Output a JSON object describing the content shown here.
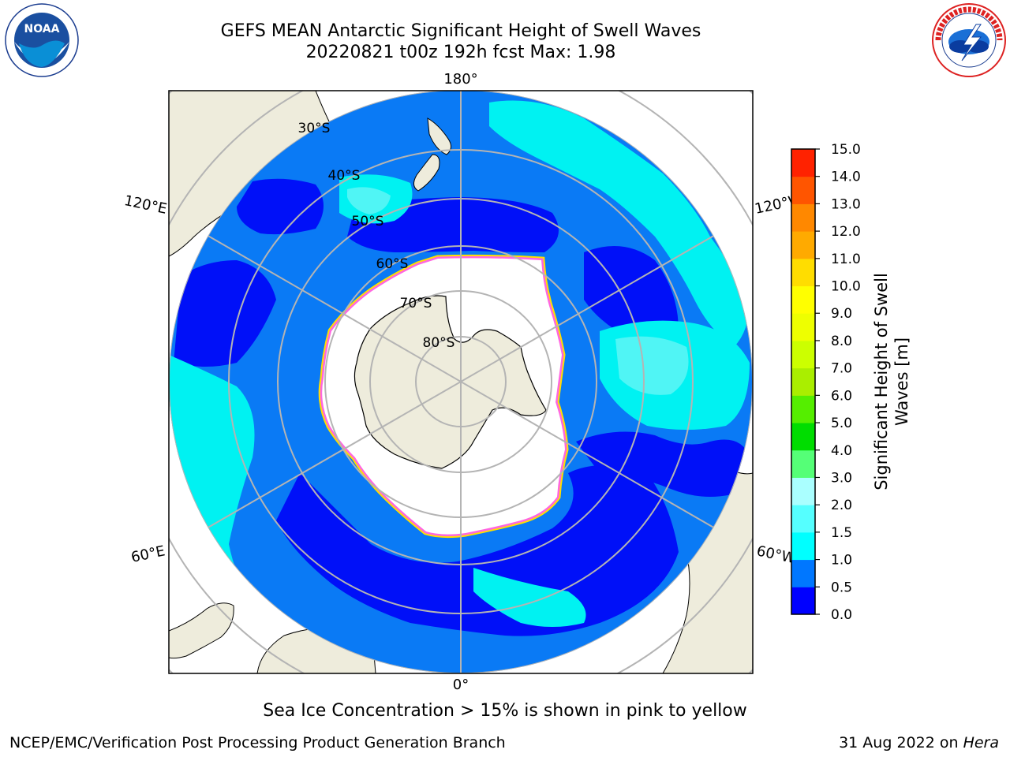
{
  "header": {
    "title_line1": "GEFS MEAN Antarctic Significant Height of Swell Waves",
    "title_line2": "20220821 t00z 192h fcst   Max: 1.98"
  },
  "logos": {
    "left": {
      "text": "NOAA",
      "ring_text": "NATIONAL OCEANIC AND ATMOSPHERIC ADMINISTRATION · U.S. DEPARTMENT OF COMMERCE"
    },
    "right": {
      "ring_text": "NATIONAL WEATHER SERVICE"
    }
  },
  "map": {
    "projection": "South Polar Stereographic",
    "lon_labels": {
      "top": "180°",
      "bottom": "0°",
      "upper_left": "120°E",
      "lower_left": "60°E",
      "upper_right": "120°W",
      "lower_right": "60°W"
    },
    "lat_labels": [
      "30°S",
      "40°S",
      "50°S",
      "60°S",
      "70°S",
      "80°S"
    ],
    "colors": {
      "land": "#eeecdc",
      "sea_ice": "#ffffff",
      "ice_edge_pink": "#ff66e0",
      "ice_edge_yellow": "#ffe000",
      "grid": "#b4b4b4",
      "ocean_0_0.5": "#0010f8",
      "ocean_0.5_1.0": "#0a7af5",
      "ocean_1.0_1.5": "#00f2f2",
      "ocean_1.5_2.0": "#50f5f5"
    }
  },
  "colorbar": {
    "label_line1": "Significant Height of Swell",
    "label_line2": "Waves [m]",
    "ticks": [
      "15.0",
      "14.0",
      "13.0",
      "12.0",
      "11.0",
      "10.0",
      "9.0",
      "8.0",
      "7.0",
      "6.0",
      "5.0",
      "4.0",
      "3.0",
      "2.0",
      "1.5",
      "1.0",
      "0.5",
      "0.0"
    ],
    "colors_bottom_to_top": [
      "#0000ff",
      "#0077ff",
      "#00ffff",
      "#55ffff",
      "#aaffff",
      "#55ff77",
      "#00dd00",
      "#55ee00",
      "#aaee00",
      "#ccff00",
      "#eeff00",
      "#ffff00",
      "#ffdd00",
      "#ffaa00",
      "#ff8800",
      "#ff5500",
      "#ff2200"
    ]
  },
  "footer": {
    "note": "Sea Ice Concentration > 15% is shown in pink to yellow",
    "credit_left": "NCEP/EMC/Verification Post Processing Product Generation Branch",
    "credit_date": "31 Aug 2022 on ",
    "credit_machine": "Hera"
  }
}
